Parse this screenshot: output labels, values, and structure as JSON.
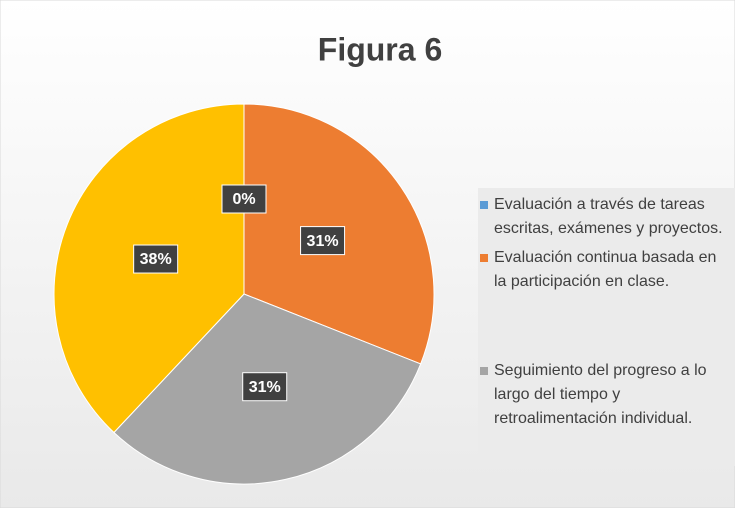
{
  "chart_data": {
    "type": "pie",
    "title": "Figura 6",
    "categories": [
      "Evaluación a través de tareas escritas, exámenes y proyectos.",
      "Evaluación continua basada en la participación en clase.",
      "Seguimiento del progreso a lo largo del tiempo y retroalimentación individual.",
      null
    ],
    "values": [
      0,
      31,
      31,
      38
    ],
    "value_labels": [
      "0%",
      "31%",
      "31%",
      "38%"
    ],
    "colors": [
      "#5b9bd5",
      "#ed7d31",
      "#a5a5a5",
      "#ffc000"
    ],
    "legend": "right"
  }
}
